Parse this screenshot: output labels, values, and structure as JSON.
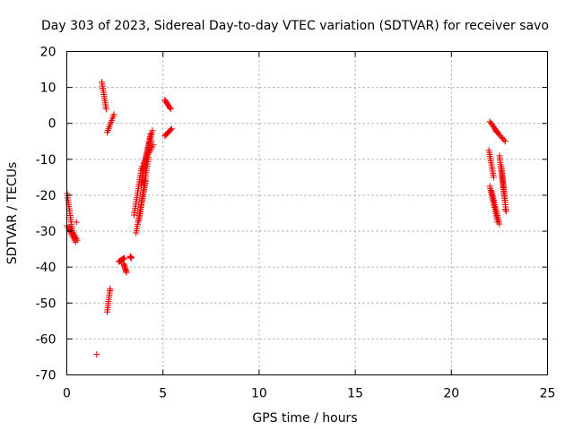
{
  "chart_data": {
    "type": "scatter",
    "title": "Day 303 of 2023, Sidereal Day-to-day VTEC variation (SDTVAR) for receiver savo",
    "xlabel": "GPS time / hours",
    "ylabel": "SDTVAR / TECUs",
    "xlim": [
      0,
      25
    ],
    "ylim": [
      -70,
      20
    ],
    "xticks": [
      0,
      5,
      10,
      15,
      20,
      25
    ],
    "yticks": [
      -70,
      -60,
      -50,
      -40,
      -30,
      -20,
      -10,
      0,
      10,
      20
    ],
    "grid": true,
    "marker": "+",
    "color": "#ee0000",
    "series": [
      {
        "name": "savo",
        "segments": [
          {
            "x0": 0.02,
            "x1": 0.3,
            "y0": -19.5,
            "y1": -30.5
          },
          {
            "x0": 0.0,
            "x1": 0.45,
            "y0": -28.5,
            "y1": -33.0
          },
          {
            "x0": 0.15,
            "x1": 0.55,
            "y0": -29.0,
            "y1": -32.5
          },
          {
            "x0": 1.82,
            "x1": 2.05,
            "y0": 11.5,
            "y1": 4.0
          },
          {
            "x0": 2.1,
            "x1": 2.45,
            "y0": -2.5,
            "y1": 2.5
          },
          {
            "x0": 2.1,
            "x1": 2.25,
            "y0": -52.5,
            "y1": -46.0
          },
          {
            "x0": 2.7,
            "x1": 3.0,
            "y0": -38.5,
            "y1": -37.5
          },
          {
            "x0": 2.95,
            "x1": 3.1,
            "y0": -39.0,
            "y1": -41.5
          },
          {
            "x0": 3.3,
            "x1": 3.35,
            "y0": -37.0,
            "y1": -37.5
          },
          {
            "x0": 3.5,
            "x1": 3.9,
            "y0": -25.5,
            "y1": -12.0
          },
          {
            "x0": 3.6,
            "x1": 4.1,
            "y0": -30.5,
            "y1": -16.0
          },
          {
            "x0": 3.75,
            "x1": 4.25,
            "y0": -27.0,
            "y1": -9.5
          },
          {
            "x0": 3.85,
            "x1": 4.35,
            "y0": -17.0,
            "y1": -3.0
          },
          {
            "x0": 3.95,
            "x1": 4.45,
            "y0": -13.0,
            "y1": -2.0
          },
          {
            "x0": 4.0,
            "x1": 4.5,
            "y0": -11.0,
            "y1": -6.0
          },
          {
            "x0": 5.1,
            "x1": 5.4,
            "y0": 6.5,
            "y1": 4.0
          },
          {
            "x0": 5.1,
            "x1": 5.45,
            "y0": -3.5,
            "y1": -1.5
          },
          {
            "x0": 22.0,
            "x1": 22.4,
            "y0": 0.5,
            "y1": -2.5
          },
          {
            "x0": 22.3,
            "x1": 22.8,
            "y0": -2.0,
            "y1": -5.0
          },
          {
            "x0": 21.95,
            "x1": 22.2,
            "y0": -7.5,
            "y1": -15.0
          },
          {
            "x0": 22.0,
            "x1": 22.4,
            "y0": -17.5,
            "y1": -27.5
          },
          {
            "x0": 22.1,
            "x1": 22.5,
            "y0": -19.0,
            "y1": -28.0
          },
          {
            "x0": 22.5,
            "x1": 22.85,
            "y0": -9.0,
            "y1": -24.5
          },
          {
            "x0": 22.6,
            "x1": 22.8,
            "y0": -12.0,
            "y1": -22.0
          }
        ],
        "points": [
          {
            "x": 1.55,
            "y": -64.3
          },
          {
            "x": 0.5,
            "y": -27.5
          },
          {
            "x": 2.25,
            "y": -46.5
          },
          {
            "x": 3.5,
            "y": -25.5
          },
          {
            "x": 4.4,
            "y": -5.0
          },
          {
            "x": 22.8,
            "y": -24.0
          }
        ]
      }
    ]
  }
}
